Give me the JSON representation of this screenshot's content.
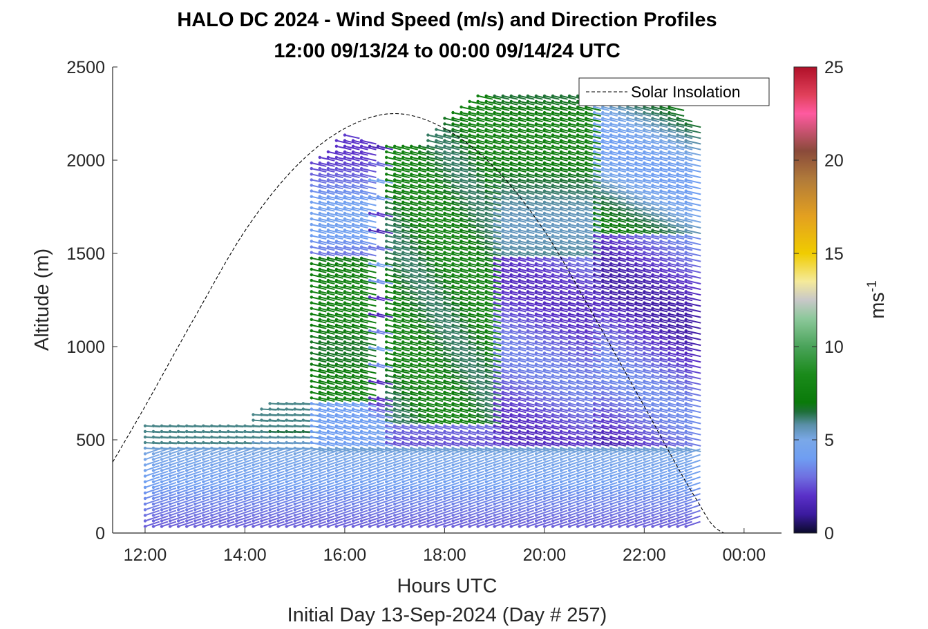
{
  "chart_data": {
    "type": "wind-barb-profile",
    "title": "HALO DC 2024 - Wind Speed (m/s) and Direction Profiles",
    "subtitle": "12:00 09/13/24 to 00:00 09/14/24  UTC",
    "xlabel": "Hours UTC",
    "xlabel2": "Initial Day 13-Sep-2024 (Day # 257)",
    "ylabel": "Altitude (m)",
    "xlim": [
      11.35,
      24.75
    ],
    "ylim": [
      0,
      2500
    ],
    "x_ticks": [
      {
        "value": 12,
        "label": "12:00"
      },
      {
        "value": 14,
        "label": "14:00"
      },
      {
        "value": 16,
        "label": "16:00"
      },
      {
        "value": 18,
        "label": "18:00"
      },
      {
        "value": 20,
        "label": "20:00"
      },
      {
        "value": 22,
        "label": "22:00"
      },
      {
        "value": 24,
        "label": "00:00"
      }
    ],
    "y_ticks": [
      0,
      500,
      1000,
      1500,
      2000,
      2500
    ],
    "colorbar": {
      "label_main": "ms",
      "label_exp": "-1",
      "range": [
        0,
        25
      ],
      "ticks": [
        0,
        5,
        10,
        15,
        20,
        25
      ],
      "stops": [
        [
          0,
          "#0a0a2a"
        ],
        [
          1,
          "#3b1a9e"
        ],
        [
          2,
          "#5a30c8"
        ],
        [
          3,
          "#6f6fe0"
        ],
        [
          4,
          "#6f9ef2"
        ],
        [
          5,
          "#7aa8e8"
        ],
        [
          5.8,
          "#5a8fa8"
        ],
        [
          6.5,
          "#1f6f3a"
        ],
        [
          7,
          "#0a7a0a"
        ],
        [
          8.5,
          "#1a8a1a"
        ],
        [
          10,
          "#4aa35a"
        ],
        [
          11.5,
          "#8cc89a"
        ],
        [
          12.5,
          "#c8c8c8"
        ],
        [
          13.5,
          "#f5ea9a"
        ],
        [
          15,
          "#f0cc00"
        ],
        [
          17,
          "#e3a020"
        ],
        [
          19,
          "#b07a3a"
        ],
        [
          20.5,
          "#8a4a3a"
        ],
        [
          22.5,
          "#ff5aa0"
        ],
        [
          23.5,
          "#e0405a"
        ],
        [
          25,
          "#b01028"
        ]
      ]
    },
    "legend": {
      "position": "top-right",
      "entries": [
        "Solar Insolation"
      ]
    },
    "solar_insolation": {
      "style": "dashed",
      "points": [
        [
          11.35,
          380
        ],
        [
          12,
          680
        ],
        [
          13,
          1160
        ],
        [
          14,
          1620
        ],
        [
          15,
          1960
        ],
        [
          16,
          2170
        ],
        [
          17,
          2250
        ],
        [
          18,
          2170
        ],
        [
          19,
          1960
        ],
        [
          20,
          1620
        ],
        [
          21,
          1160
        ],
        [
          22,
          680
        ],
        [
          23,
          200
        ],
        [
          23.6,
          0
        ],
        [
          24.75,
          0
        ]
      ]
    },
    "profiles": {
      "start_time": 12.0,
      "end_time": 23.0,
      "step_hours": 0.1667,
      "bottom_altitude": 35,
      "altitude_step": 30,
      "top_altitude_by_time": [
        [
          12.0,
          585
        ],
        [
          13.0,
          585
        ],
        [
          14.0,
          580
        ],
        [
          14.2,
          650
        ],
        [
          14.5,
          700
        ],
        [
          15.2,
          700
        ],
        [
          15.3,
          2000
        ],
        [
          16.0,
          2140
        ],
        [
          16.8,
          2100
        ],
        [
          17.2,
          2080
        ],
        [
          17.5,
          2100
        ],
        [
          18.0,
          2230
        ],
        [
          18.7,
          2370
        ],
        [
          21.5,
          2370
        ],
        [
          22.5,
          2300
        ],
        [
          23.0,
          2150
        ]
      ],
      "wind_speed_description": [
        {
          "region": "below 300 m",
          "speed_ms": 3
        },
        {
          "region": "300-450 m",
          "speed_ms": 4.5
        },
        {
          "region": "mixed layer top, 12:00-15:20",
          "speed_ms": 7.5
        },
        {
          "region": "15:20-16:20, 700-1500 m",
          "speed_ms": 7.5
        },
        {
          "region": "16:40-19:00, 600-2200 m",
          "speed_ms": 7.5
        },
        {
          "region": "19:00-23:00, below 1500 m",
          "speed_ms": 2.5
        },
        {
          "region": "21:00-23:00, above 1600 m",
          "speed_ms": 6.5
        }
      ]
    }
  }
}
